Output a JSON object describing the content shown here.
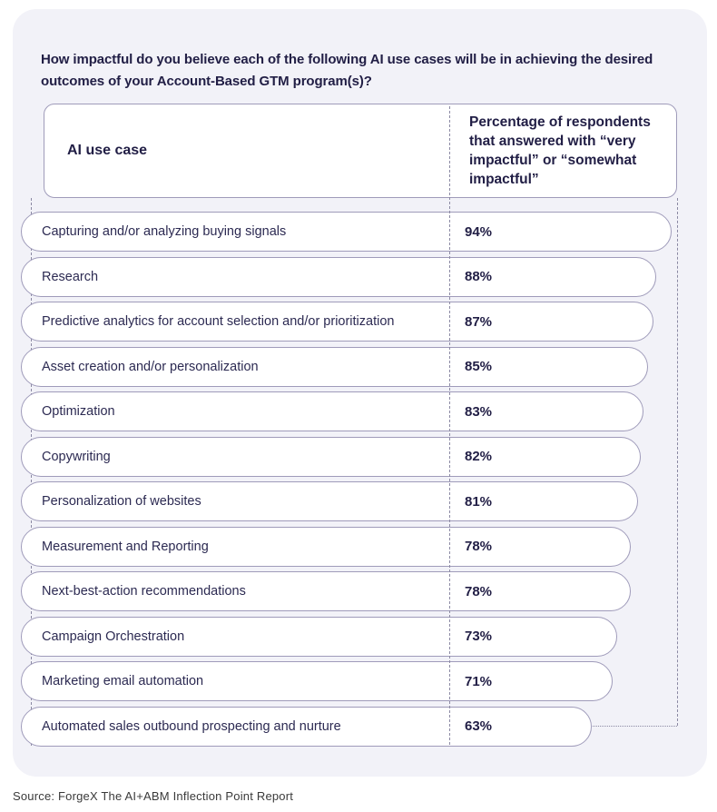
{
  "title": "How impactful do you believe each of the following AI use cases will be in achieving the desired outcomes of your Account-Based GTM program(s)?",
  "table": {
    "col1_header": "AI use case",
    "col2_header": "Percentage of respondents that answered with “very impactful” or “somewhat impactful”"
  },
  "source": "Source: ForgeX The AI+ABM Inflection Point Report",
  "colors": {
    "card_bg": "#f2f2f8",
    "pill_border": "#9f9bba",
    "dashed_guides": "#8b89a3",
    "heading_text": "#211e45",
    "row_text": "#2c2a52"
  },
  "chart_data": {
    "type": "bar",
    "orientation": "horizontal",
    "title": "How impactful do you believe each of the following AI use cases will be in achieving the desired outcomes of your Account-Based GTM program(s)?",
    "xlabel": "AI use case",
    "ylabel": "Percentage of respondents that answered with “very impactful” or “somewhat impactful”",
    "value_axis_range": [
      0,
      100
    ],
    "grid": false,
    "legend": false,
    "categories": [
      "Capturing and/or analyzing buying signals",
      "Research",
      "Predictive analytics for account selection and/or prioritization",
      "Asset creation and/or personalization",
      "Optimization",
      "Copywriting",
      "Personalization of websites",
      "Measurement and Reporting",
      "Next-best-action recommendations",
      "Campaign Orchestration",
      "Marketing email automation",
      "Automated sales outbound prospecting and nurture"
    ],
    "values": [
      94,
      88,
      87,
      85,
      83,
      82,
      81,
      78,
      78,
      73,
      71,
      63
    ],
    "display_values": [
      "94%",
      "88%",
      "87%",
      "85%",
      "83%",
      "82%",
      "81%",
      "78%",
      "78%",
      "73%",
      "71%",
      "63%"
    ]
  }
}
